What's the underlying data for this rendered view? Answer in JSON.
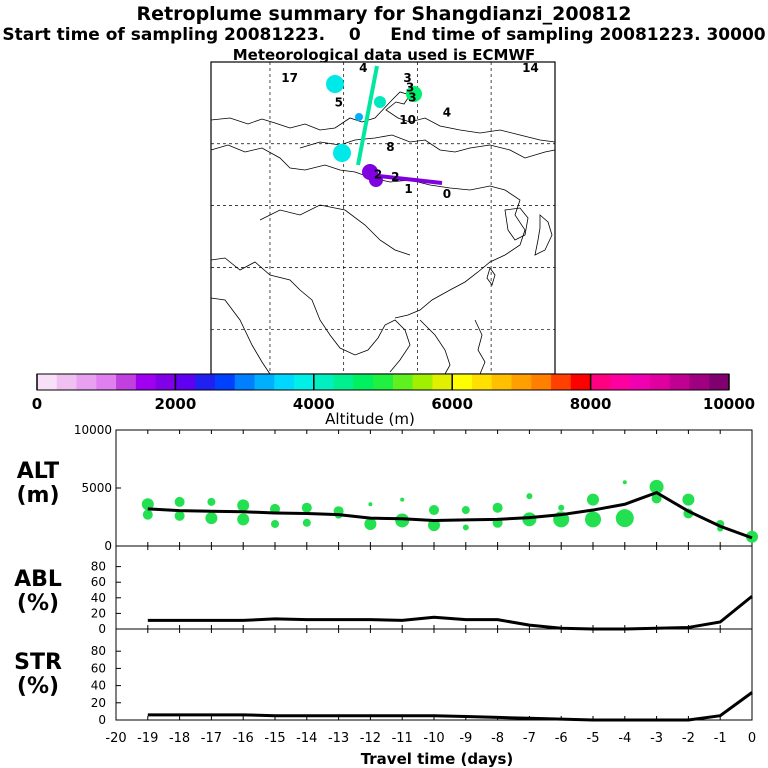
{
  "header": {
    "title": "Retroplume summary for Shangdianzi_200812",
    "subtitle": "Start time of sampling 20081223.    0     End time of sampling 20081223. 30000",
    "met_line": "Meteorological data used is ECMWF"
  },
  "colorbar": {
    "label": "Altitude (m)",
    "ticks": [
      "0",
      "2000",
      "4000",
      "6000",
      "8000",
      "10000"
    ],
    "colors": [
      "#f8e0f8",
      "#f0c0f0",
      "#e8a0f0",
      "#e080f0",
      "#c040e0",
      "#a000f0",
      "#8000e8",
      "#6000f0",
      "#2020f0",
      "#0040ff",
      "#0080ff",
      "#00b0ff",
      "#00d8ff",
      "#00f0e8",
      "#00f0c0",
      "#00f090",
      "#00f060",
      "#20f040",
      "#60f020",
      "#a0f000",
      "#e0f000",
      "#ffff00",
      "#ffe000",
      "#ffc000",
      "#ffa000",
      "#ff8000",
      "#ff4000",
      "#ff0000",
      "#ff0080",
      "#ff00a0",
      "#f000b0",
      "#e000a0",
      "#c00090",
      "#a00080",
      "#800070"
    ]
  },
  "map": {
    "trajectory_labels": [
      {
        "text": "0",
        "lon": 118,
        "lat": 40.5
      },
      {
        "text": "1",
        "lon": 110.2,
        "lat": 41.5
      },
      {
        "text": "2",
        "lon": 107.5,
        "lat": 44
      },
      {
        "text": "2",
        "lon": 104,
        "lat": 44.5
      },
      {
        "text": "3",
        "lon": 110,
        "lat": 64
      },
      {
        "text": "3",
        "lon": 110.5,
        "lat": 62
      },
      {
        "text": "3",
        "lon": 111,
        "lat": 60
      },
      {
        "text": "4",
        "lon": 101,
        "lat": 66
      },
      {
        "text": "4",
        "lon": 118,
        "lat": 57
      },
      {
        "text": "5",
        "lon": 96,
        "lat": 59
      },
      {
        "text": "8",
        "lon": 106.5,
        "lat": 50
      },
      {
        "text": "10",
        "lon": 110,
        "lat": 55.5
      },
      {
        "text": "17",
        "lon": 86,
        "lat": 64
      },
      {
        "text": "14",
        "lon": 135,
        "lat": 66
      }
    ]
  },
  "panels": [
    {
      "name": "ALT",
      "line1": "ALT",
      "line2": "(m)",
      "ymax": 10000,
      "ticks": [
        "10000",
        "5000",
        "0"
      ]
    },
    {
      "name": "ABL",
      "line1": "ABL",
      "line2": "(%)",
      "ymax": 100,
      "ticks": [
        "80",
        "60",
        "40",
        "20",
        "0"
      ]
    },
    {
      "name": "STR",
      "line1": "STR",
      "line2": "(%)",
      "ymax": 100,
      "ticks": [
        "80",
        "60",
        "40",
        "20",
        "0"
      ]
    }
  ],
  "chart_data": [
    {
      "type": "line",
      "title": "ALT",
      "ylabel": "(m)",
      "xlabel": "Travel time (days)",
      "xlim": [
        -20,
        0
      ],
      "ylim": [
        0,
        10000
      ],
      "x": [
        -19,
        -18,
        -17,
        -16,
        -15,
        -14,
        -13,
        -12,
        -11,
        -10,
        -9,
        -8,
        -7,
        -6,
        -5,
        -4,
        -3,
        -2,
        -1,
        0
      ],
      "values": [
        3200,
        3050,
        3000,
        2950,
        2850,
        2800,
        2700,
        2400,
        2350,
        2200,
        2250,
        2300,
        2450,
        2700,
        3100,
        3600,
        4600,
        3000,
        1700,
        700
      ],
      "cluster_points": [
        {
          "x": -19,
          "y": 3600,
          "r": 6
        },
        {
          "x": -19,
          "y": 2700,
          "r": 5
        },
        {
          "x": -18,
          "y": 3800,
          "r": 5
        },
        {
          "x": -18,
          "y": 2600,
          "r": 5
        },
        {
          "x": -17,
          "y": 3800,
          "r": 4
        },
        {
          "x": -17,
          "y": 2400,
          "r": 6
        },
        {
          "x": -16,
          "y": 3500,
          "r": 6
        },
        {
          "x": -16,
          "y": 2300,
          "r": 6
        },
        {
          "x": -15,
          "y": 3200,
          "r": 5
        },
        {
          "x": -15,
          "y": 1900,
          "r": 4
        },
        {
          "x": -14,
          "y": 3300,
          "r": 5
        },
        {
          "x": -14,
          "y": 2000,
          "r": 4
        },
        {
          "x": -13,
          "y": 3000,
          "r": 5
        },
        {
          "x": -13,
          "y": 2700,
          "r": 4
        },
        {
          "x": -12,
          "y": 3600,
          "r": 2
        },
        {
          "x": -12,
          "y": 1900,
          "r": 6
        },
        {
          "x": -11,
          "y": 2200,
          "r": 7
        },
        {
          "x": -11,
          "y": 4000,
          "r": 2
        },
        {
          "x": -10,
          "y": 3100,
          "r": 5
        },
        {
          "x": -10,
          "y": 1800,
          "r": 6
        },
        {
          "x": -9,
          "y": 3100,
          "r": 4
        },
        {
          "x": -9,
          "y": 1600,
          "r": 3
        },
        {
          "x": -8,
          "y": 3300,
          "r": 5
        },
        {
          "x": -8,
          "y": 2000,
          "r": 5
        },
        {
          "x": -7,
          "y": 4300,
          "r": 3
        },
        {
          "x": -7,
          "y": 2300,
          "r": 7
        },
        {
          "x": -6,
          "y": 2300,
          "r": 8
        },
        {
          "x": -6,
          "y": 3300,
          "r": 3
        },
        {
          "x": -5,
          "y": 2300,
          "r": 8
        },
        {
          "x": -5,
          "y": 4000,
          "r": 6
        },
        {
          "x": -4,
          "y": 2400,
          "r": 9
        },
        {
          "x": -4,
          "y": 5500,
          "r": 2
        },
        {
          "x": -3,
          "y": 5100,
          "r": 7
        },
        {
          "x": -3,
          "y": 4100,
          "r": 5
        },
        {
          "x": -2,
          "y": 4000,
          "r": 6
        },
        {
          "x": -2,
          "y": 2800,
          "r": 5
        },
        {
          "x": -1,
          "y": 1900,
          "r": 4
        },
        {
          "x": -1,
          "y": 1500,
          "r": 3
        },
        {
          "x": 0,
          "y": 800,
          "r": 6
        },
        {
          "x": 0,
          "y": 600,
          "r": 3
        }
      ]
    },
    {
      "type": "line",
      "title": "ABL",
      "ylabel": "(%)",
      "xlim": [
        -20,
        0
      ],
      "ylim": [
        0,
        100
      ],
      "x": [
        -19,
        -18,
        -17,
        -16,
        -15,
        -14,
        -13,
        -12,
        -11,
        -10,
        -9,
        -8,
        -7,
        -6,
        -5,
        -4,
        -3,
        -2,
        -1,
        0
      ],
      "values": [
        11,
        11,
        11,
        11,
        13,
        12,
        12,
        12,
        11,
        15,
        12,
        12,
        5,
        1,
        0,
        0,
        1,
        2,
        9,
        42
      ]
    },
    {
      "type": "line",
      "title": "STR",
      "ylabel": "(%)",
      "xlim": [
        -20,
        0
      ],
      "ylim": [
        0,
        100
      ],
      "x": [
        -19,
        -18,
        -17,
        -16,
        -15,
        -14,
        -13,
        -12,
        -11,
        -10,
        -9,
        -8,
        -7,
        -6,
        -5,
        -4,
        -3,
        -2,
        -1,
        0
      ],
      "values": [
        6,
        6,
        6,
        6,
        5,
        5,
        5,
        5,
        5,
        5,
        4,
        3,
        2,
        1,
        0,
        0,
        0,
        0,
        5,
        32
      ]
    }
  ],
  "xaxis": {
    "label": "Travel time (days)",
    "ticks": [
      "-20",
      "-19",
      "-18",
      "-17",
      "-16",
      "-15",
      "-14",
      "-13",
      "-12",
      "-11",
      "-10",
      "-9",
      "-8",
      "-7",
      "-6",
      "-5",
      "-4",
      "-3",
      "-2",
      "-1",
      "0"
    ]
  },
  "colors": {
    "cluster": "#22e050",
    "median_line": "#000000",
    "plume_main": "#00e8a0",
    "plume_near": "#8000e0"
  }
}
